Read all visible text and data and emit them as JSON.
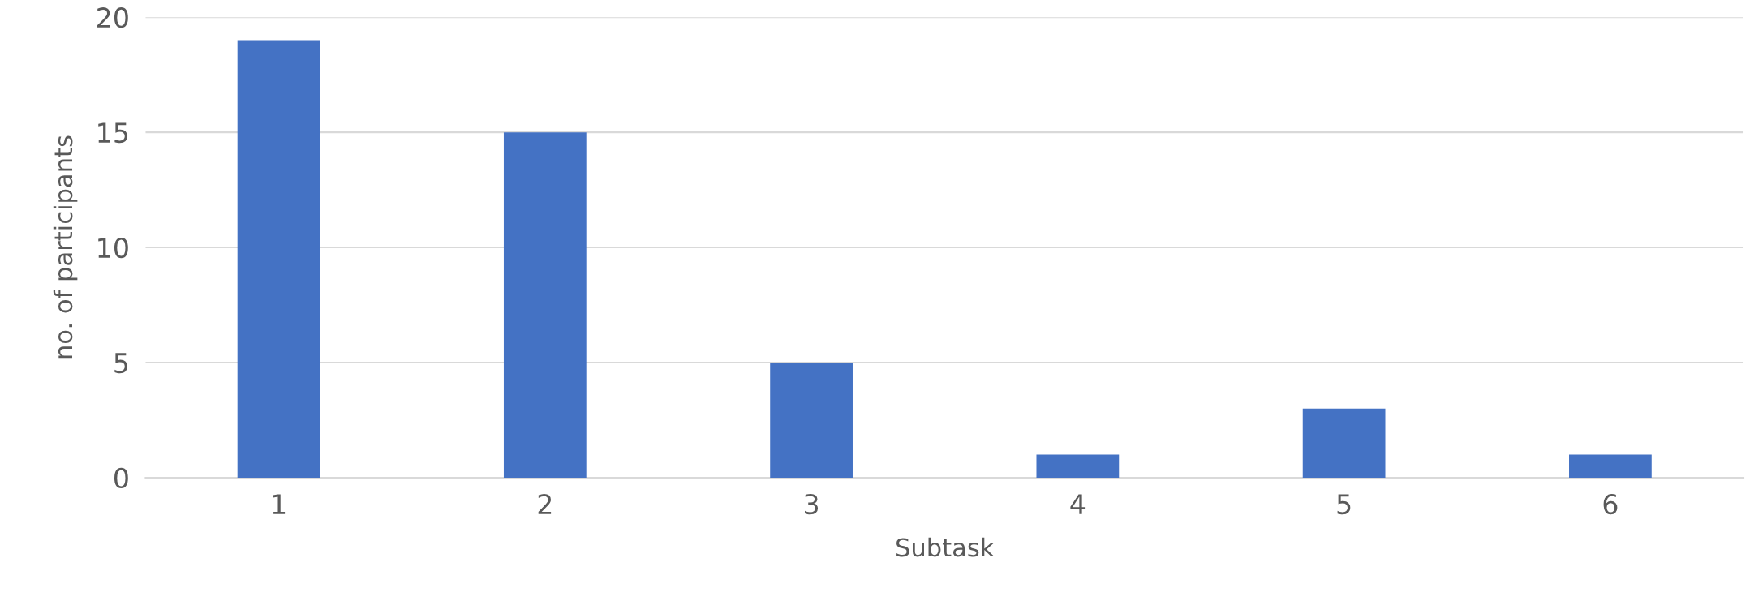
{
  "chart_data": {
    "type": "bar",
    "xlabel": "Subtask",
    "ylabel": "no. of participants",
    "categories": [
      "1",
      "2",
      "3",
      "4",
      "5",
      "6"
    ],
    "values": [
      19,
      15,
      5,
      1,
      3,
      1
    ],
    "color": "#4472c4",
    "ylim": [
      0,
      20
    ],
    "yticks": [
      0,
      5,
      10,
      15,
      20
    ],
    "grid": "y"
  }
}
